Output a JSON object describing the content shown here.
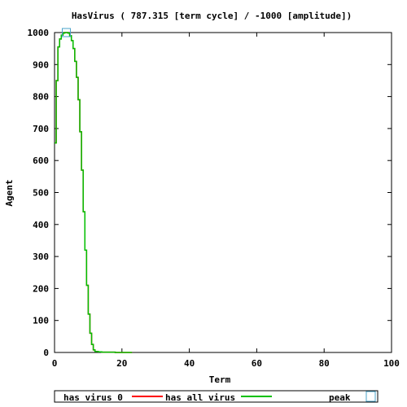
{
  "chart_data": {
    "type": "line",
    "title": "HasVirus ( 787.315 [term cycle] / -1000 [amplitude])",
    "xlabel": "Term",
    "ylabel": "Agent",
    "xlim": [
      0,
      100
    ],
    "ylim": [
      0,
      1000
    ],
    "xticks": [
      0,
      20,
      40,
      60,
      80,
      100
    ],
    "yticks": [
      0,
      100,
      200,
      300,
      400,
      500,
      600,
      700,
      800,
      900,
      1000
    ],
    "grid": false,
    "legend": "bottom",
    "series": [
      {
        "name": "has_virus_0",
        "color": "#ff0000",
        "step": true,
        "x": [
          0,
          0.5,
          1,
          1.5,
          2,
          2.5,
          3,
          3.5,
          4,
          4.5,
          5,
          5.5,
          6,
          6.5,
          7,
          7.5,
          8,
          8.5,
          9,
          9.5,
          10,
          10.5,
          11,
          11.5,
          12,
          13,
          14,
          16,
          18,
          20,
          23
        ],
        "values": [
          655,
          850,
          955,
          980,
          992,
          998,
          1000,
          1000,
          998,
          990,
          975,
          950,
          910,
          860,
          790,
          690,
          570,
          440,
          320,
          210,
          120,
          60,
          25,
          8,
          3,
          2,
          1,
          1,
          0,
          0,
          0
        ]
      },
      {
        "name": "has_all_virus",
        "color": "#00c000",
        "step": true,
        "x": [
          0,
          0.5,
          1,
          1.5,
          2,
          2.5,
          3,
          3.5,
          4,
          4.5,
          5,
          5.5,
          6,
          6.5,
          7,
          7.5,
          8,
          8.5,
          9,
          9.5,
          10,
          10.5,
          11,
          11.5,
          12,
          13,
          14,
          16,
          18,
          20,
          23
        ],
        "values": [
          655,
          850,
          955,
          980,
          992,
          998,
          1000,
          1000,
          998,
          990,
          975,
          950,
          910,
          860,
          790,
          690,
          570,
          440,
          320,
          210,
          120,
          60,
          25,
          8,
          3,
          2,
          1,
          1,
          0,
          0,
          0
        ]
      },
      {
        "name": "peak",
        "color": "#4aa3c9",
        "marker": "square",
        "x": [
          3.5
        ],
        "values": [
          1000
        ]
      }
    ]
  }
}
